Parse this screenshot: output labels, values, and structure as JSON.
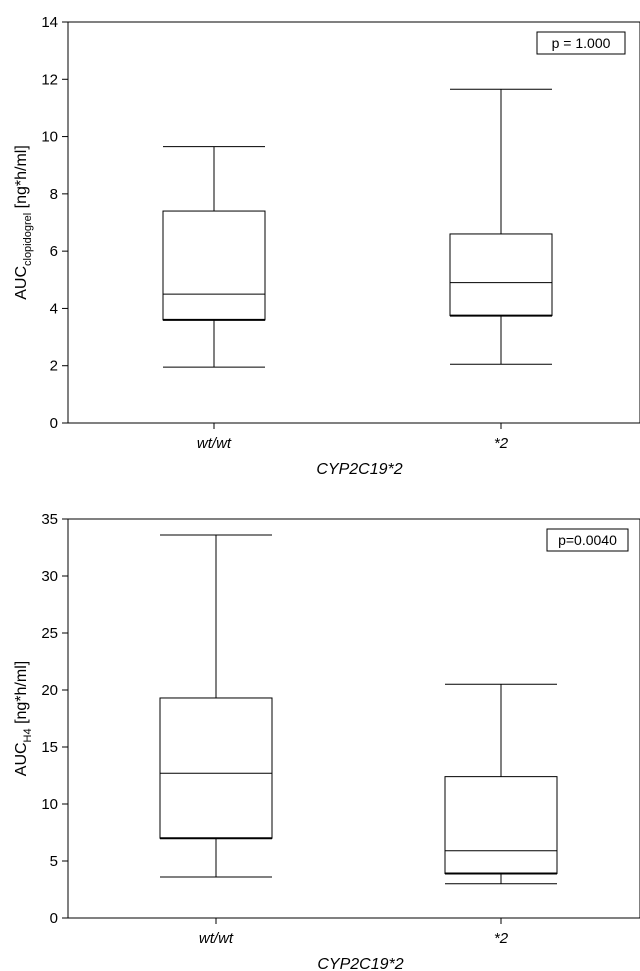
{
  "chart_data": [
    {
      "type": "box",
      "categories": [
        "wt/wt",
        "*2"
      ],
      "boxes": [
        {
          "min": 1.95,
          "q1": 3.6,
          "median": 4.5,
          "q3": 7.4,
          "max": 9.65
        },
        {
          "min": 2.05,
          "q1": 3.75,
          "median": 4.9,
          "q3": 6.6,
          "max": 11.65
        }
      ],
      "ylabel_main": "AUC",
      "ylabel_sub": "clopidogrel",
      "ylabel_unit": " [ng*h/ml]",
      "xlabel": "CYP2C19*2",
      "annotation": "p = 1.000",
      "ylim": [
        0,
        14
      ],
      "yticks": [
        0,
        2,
        4,
        6,
        8,
        10,
        12,
        14
      ],
      "grid": false
    },
    {
      "type": "box",
      "categories": [
        "wt/wt",
        "*2"
      ],
      "boxes": [
        {
          "min": 3.6,
          "q1": 7.0,
          "median": 12.7,
          "q3": 19.3,
          "max": 33.6
        },
        {
          "min": 3.0,
          "q1": 3.9,
          "median": 5.9,
          "q3": 12.4,
          "max": 20.5
        }
      ],
      "ylabel_main": "AUC",
      "ylabel_sub": "H4",
      "ylabel_unit": " [ng*h/ml]",
      "xlabel": "CYP2C19*2",
      "annotation": "p=0.0040",
      "ylim": [
        0,
        35
      ],
      "yticks": [
        0,
        5,
        10,
        15,
        20,
        25,
        30,
        35
      ],
      "grid": false
    }
  ]
}
